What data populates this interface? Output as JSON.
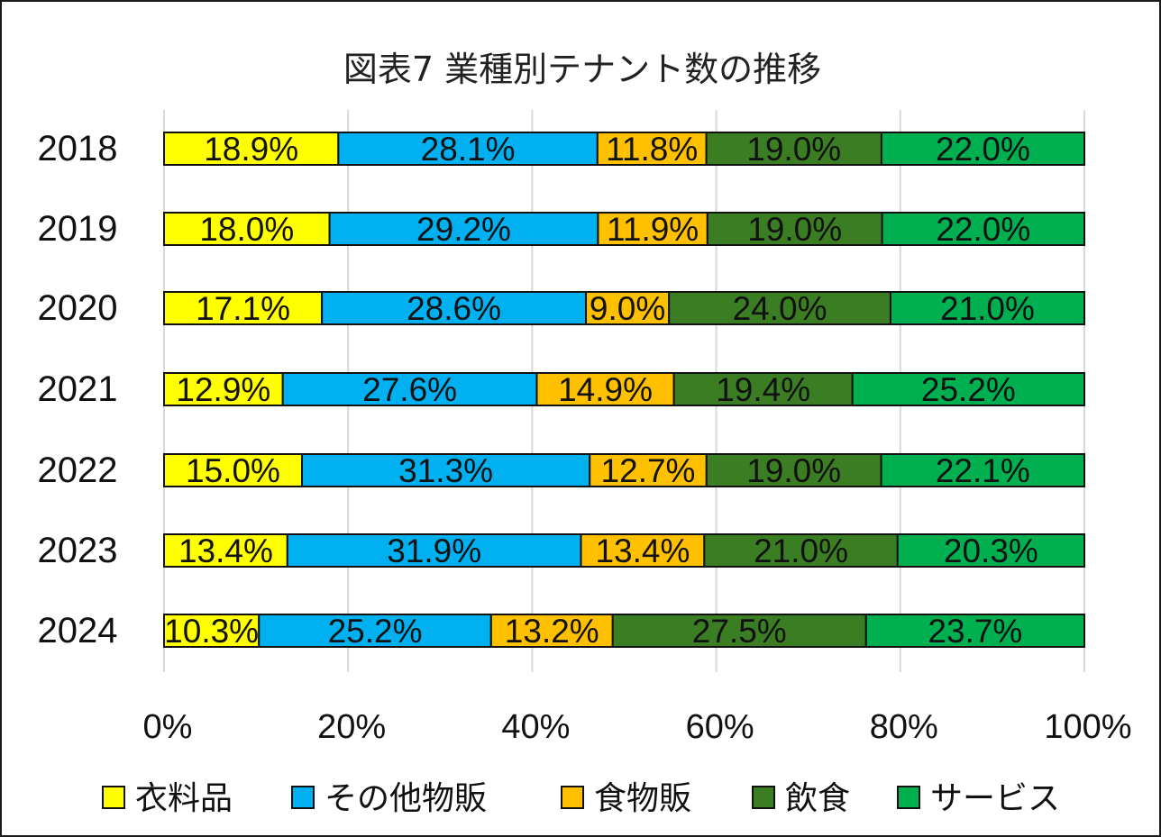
{
  "chart_data": {
    "type": "bar",
    "orientation": "horizontal",
    "stacked": "percent",
    "title": "図表7 業種別テナント数の推移",
    "categories": [
      "2018",
      "2019",
      "2020",
      "2021",
      "2022",
      "2023",
      "2024"
    ],
    "series": [
      {
        "name": "衣料品",
        "color": "#ffff00",
        "values": [
          18.9,
          18.0,
          17.1,
          12.9,
          15.0,
          13.4,
          10.3
        ]
      },
      {
        "name": "その他物販",
        "color": "#00b0f0",
        "values": [
          28.1,
          29.2,
          28.6,
          27.6,
          31.3,
          31.9,
          25.2
        ]
      },
      {
        "name": "食物販",
        "color": "#ffc000",
        "values": [
          11.8,
          11.9,
          9.0,
          14.9,
          12.7,
          13.4,
          13.2
        ]
      },
      {
        "name": "飲食",
        "color": "#3a7d22",
        "values": [
          19.0,
          19.0,
          24.0,
          19.4,
          19.0,
          21.0,
          27.5
        ]
      },
      {
        "name": "サービス",
        "color": "#00b050",
        "values": [
          22.0,
          22.0,
          21.0,
          25.2,
          22.1,
          20.3,
          23.7
        ]
      }
    ],
    "data_labels": [
      [
        "18.9%",
        "28.1%",
        "11.8%",
        "19.0%",
        "22.0%"
      ],
      [
        "18.0%",
        "29.2%",
        "11.9%",
        "19.0%",
        "22.0%"
      ],
      [
        "17.1%",
        "28.6%",
        "9.0%",
        "24.0%",
        "21.0%"
      ],
      [
        "12.9%",
        "27.6%",
        "14.9%",
        "19.4%",
        "25.2%"
      ],
      [
        "15.0%",
        "31.3%",
        "12.7%",
        "19.0%",
        "22.1%"
      ],
      [
        "13.4%",
        "31.9%",
        "13.4%",
        "21.0%",
        "20.3%"
      ],
      [
        "10.3%",
        "25.2%",
        "13.2%",
        "27.5%",
        "23.7%"
      ]
    ],
    "x_ticks": [
      "0%",
      "20%",
      "40%",
      "60%",
      "80%",
      "100%"
    ],
    "xlim": [
      0,
      100
    ],
    "grid": true,
    "legend_position": "bottom"
  }
}
